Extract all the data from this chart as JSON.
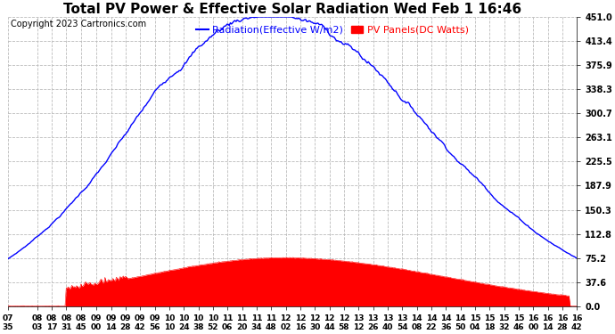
{
  "title": "Total PV Power & Effective Solar Radiation Wed Feb 1 16:46",
  "copyright": "Copyright 2023 Cartronics.com",
  "legend_radiation": "Radiation(Effective W/m2)",
  "legend_pv": "PV Panels(DC Watts)",
  "radiation_color": "blue",
  "pv_color": "red",
  "yticks": [
    0.0,
    37.6,
    75.2,
    112.8,
    150.3,
    187.9,
    225.5,
    263.1,
    300.7,
    338.3,
    375.9,
    413.4,
    451.0
  ],
  "ymax": 451.0,
  "ymin": 0.0,
  "xtick_labels": [
    "07:35",
    "08:03",
    "08:17",
    "08:31",
    "08:45",
    "09:00",
    "09:14",
    "09:28",
    "09:42",
    "09:56",
    "10:10",
    "10:24",
    "10:38",
    "10:52",
    "11:06",
    "11:20",
    "11:34",
    "11:48",
    "12:02",
    "12:16",
    "12:30",
    "12:44",
    "12:58",
    "13:12",
    "13:26",
    "13:40",
    "13:54",
    "14:08",
    "14:22",
    "14:36",
    "14:50",
    "15:04",
    "15:18",
    "15:32",
    "15:46",
    "16:00",
    "16:14",
    "16:28",
    "16:42"
  ],
  "background_color": "#ffffff",
  "grid_color": "#bbbbbb",
  "title_fontsize": 11,
  "axis_fontsize": 7,
  "copyright_fontsize": 7,
  "legend_fontsize": 8
}
